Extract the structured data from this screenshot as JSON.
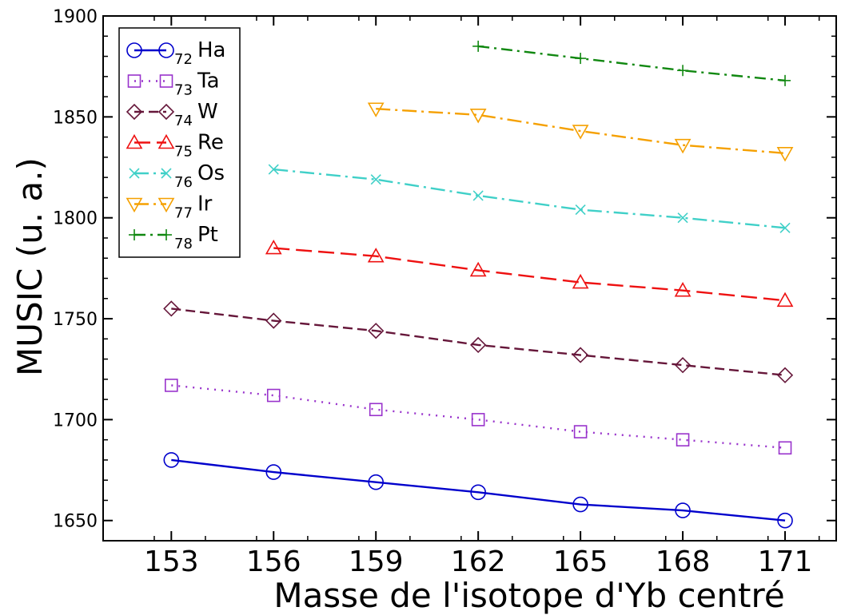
{
  "chart_data": {
    "type": "line",
    "xlabel": "Masse de l'isotope d'Yb centré",
    "ylabel": "MUSIC (u. a.)",
    "xlim": [
      151,
      172.5
    ],
    "ylim": [
      1640,
      1900
    ],
    "xticks": [
      153,
      156,
      159,
      162,
      165,
      168,
      171
    ],
    "yticks": [
      1650,
      1700,
      1750,
      1800,
      1850,
      1900
    ],
    "grid": false,
    "legend_position": "top-left",
    "series": [
      {
        "sub": "72",
        "name": "Ha",
        "color": "#0000cc",
        "marker": "circle",
        "dash": "solid",
        "x": [
          153,
          156,
          159,
          162,
          165,
          168,
          171
        ],
        "y": [
          1680,
          1674,
          1669,
          1664,
          1658,
          1655,
          1650
        ]
      },
      {
        "sub": "73",
        "name": "Ta",
        "color": "#9933cc",
        "marker": "square",
        "dash": "dotted",
        "x": [
          153,
          156,
          159,
          162,
          165,
          168,
          171
        ],
        "y": [
          1717,
          1712,
          1705,
          1700,
          1694,
          1690,
          1686
        ]
      },
      {
        "sub": "74",
        "name": "W",
        "color": "#66173a",
        "marker": "diamond",
        "dash": "dashed",
        "x": [
          153,
          156,
          159,
          162,
          165,
          168,
          171
        ],
        "y": [
          1755,
          1749,
          1744,
          1737,
          1732,
          1727,
          1722
        ]
      },
      {
        "sub": "75",
        "name": "Re",
        "color": "#ee1111",
        "marker": "triangle-up",
        "dash": "longdash",
        "x": [
          156,
          159,
          162,
          165,
          168,
          171
        ],
        "y": [
          1785,
          1781,
          1774,
          1768,
          1764,
          1759
        ]
      },
      {
        "sub": "76",
        "name": "Os",
        "color": "#40d0c8",
        "marker": "x",
        "dash": "dashdot",
        "x": [
          156,
          159,
          162,
          165,
          168,
          171
        ],
        "y": [
          1824,
          1819,
          1811,
          1804,
          1800,
          1795
        ]
      },
      {
        "sub": "77",
        "name": "Ir",
        "color": "#f5a000",
        "marker": "triangle-down",
        "dash": "dashdot",
        "x": [
          159,
          162,
          165,
          168,
          171
        ],
        "y": [
          1854,
          1851,
          1843,
          1836,
          1832
        ]
      },
      {
        "sub": "78",
        "name": "Pt",
        "color": "#118811",
        "marker": "plus",
        "dash": "dashdot2",
        "x": [
          162,
          165,
          168,
          171
        ],
        "y": [
          1885,
          1879,
          1873,
          1868
        ]
      }
    ]
  }
}
